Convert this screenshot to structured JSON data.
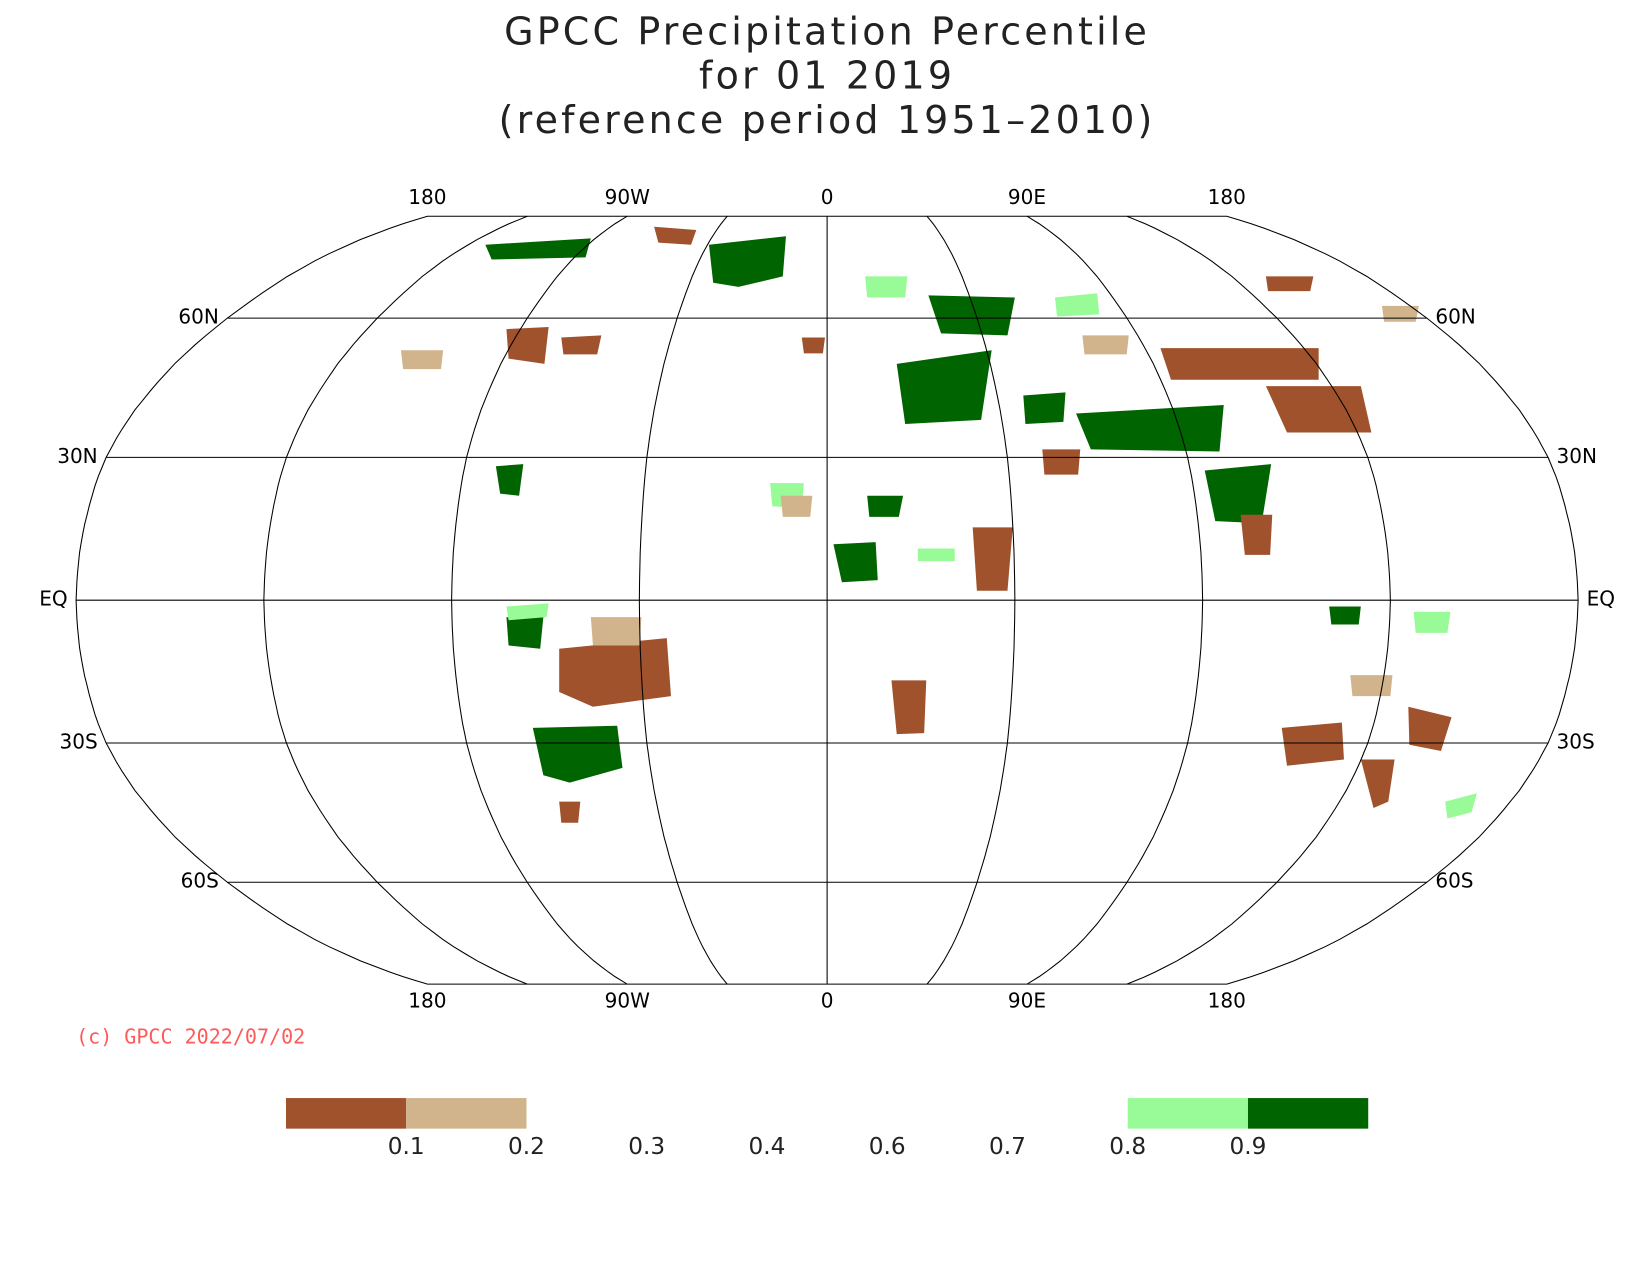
{
  "chart_data": {
    "type": "map",
    "title_lines": [
      "GPCC Precipitation Percentile",
      "for 01 2019",
      "(reference period 1951–2010)"
    ],
    "lat_labels": [
      "60N",
      "30N",
      "EQ",
      "30S",
      "60S"
    ],
    "lon_labels": [
      "180",
      "90W",
      "0",
      "90E",
      "180"
    ],
    "copyright": "(c) GPCC 2022/07/02",
    "legend": {
      "ticks": [
        0.1,
        0.2,
        0.3,
        0.4,
        0.6,
        0.7,
        0.8,
        0.9
      ],
      "colors": [
        "#a0522d",
        "#d2b48c",
        null,
        null,
        null,
        null,
        null,
        "#98fb98",
        "#006400"
      ]
    }
  }
}
